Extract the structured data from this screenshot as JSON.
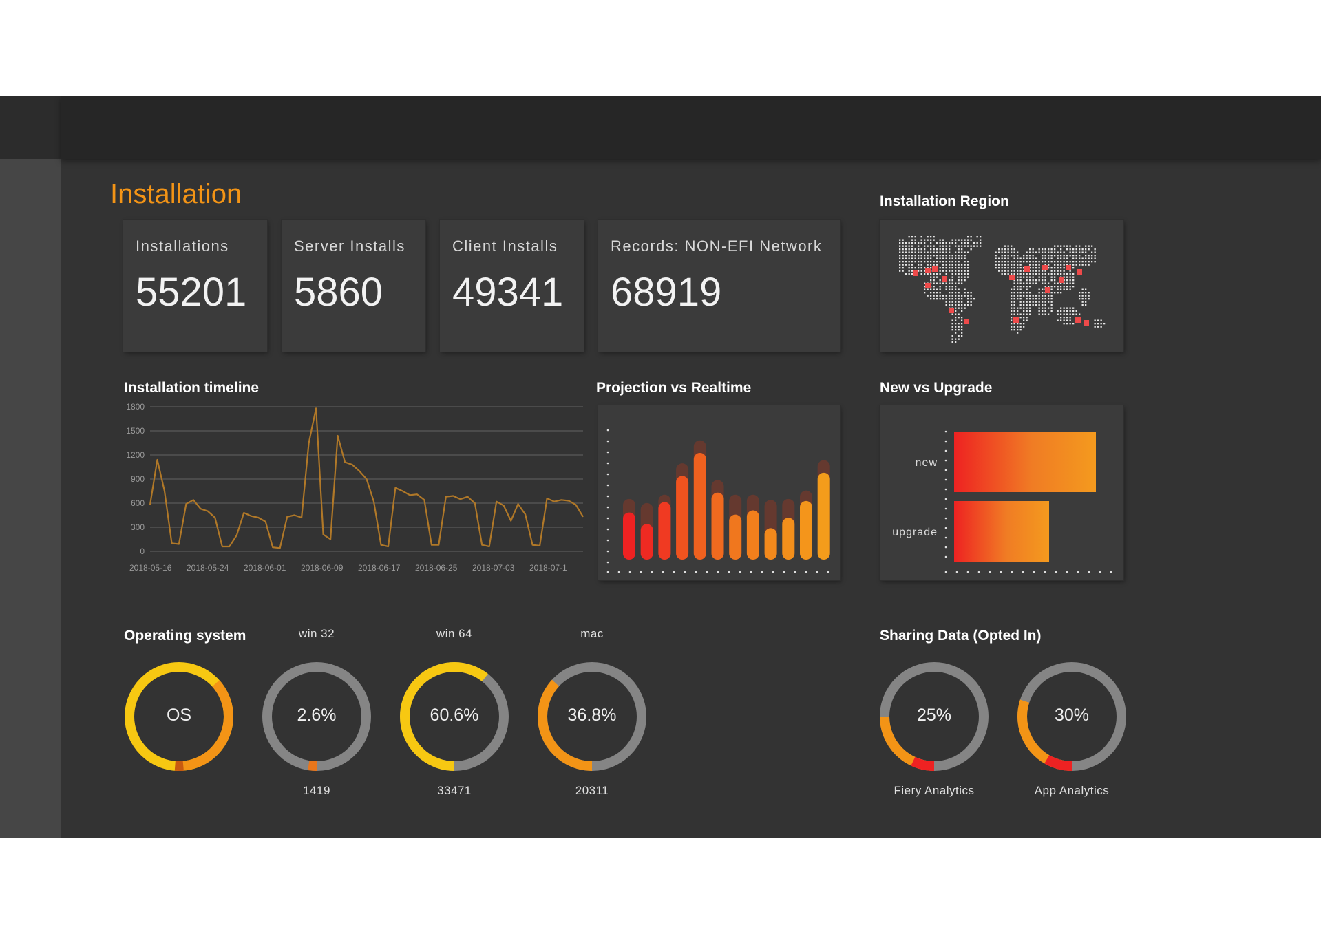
{
  "page": {
    "title": "Installation"
  },
  "kpis": [
    {
      "label": "Installations",
      "value": "55201"
    },
    {
      "label": "Server Installs",
      "value": "5860"
    },
    {
      "label": "Client Installs",
      "value": "49341"
    },
    {
      "label": "Records: NON-EFI Network",
      "value": "68919"
    }
  ],
  "sections": {
    "region": "Installation Region",
    "timeline": "Installation timeline",
    "projection": "Projection vs Realtime",
    "new_upgrade": "New vs Upgrade",
    "os": "Operating system",
    "sharing": "Sharing Data (Opted In)"
  },
  "colors": {
    "accent": "#f39416",
    "yellow": "#f7c812",
    "red": "#ee2222",
    "ring_bg": "#858585"
  },
  "os_rings": [
    {
      "title": "",
      "center": "OS",
      "count": "",
      "fraction": 1.0
    },
    {
      "title": "win 32",
      "center": "2.6%",
      "count": "1419",
      "fraction": 0.026
    },
    {
      "title": "win 64",
      "center": "60.6%",
      "count": "33471",
      "fraction": 0.606
    },
    {
      "title": "mac",
      "center": "36.8%",
      "count": "20311",
      "fraction": 0.368
    }
  ],
  "sharing_rings": [
    {
      "center": "25%",
      "label": "Fiery Analytics",
      "fraction": 0.25
    },
    {
      "center": "30%",
      "label": "App Analytics",
      "fraction": 0.3
    }
  ],
  "chart_data": [
    {
      "type": "line",
      "title": "Installation timeline",
      "x_tick_labels": [
        "2018-05-16",
        "2018-05-24",
        "2018-06-01",
        "2018-06-09",
        "2018-06-17",
        "2018-06-25",
        "2018-07-03",
        "2018-07-1"
      ],
      "y_tick_labels": [
        "0",
        "300",
        "600",
        "900",
        "1200",
        "1500",
        "1800"
      ],
      "ylim": [
        0,
        1800
      ],
      "grid": true,
      "series": [
        {
          "values": [
            580,
            1140,
            750,
            100,
            90,
            590,
            640,
            530,
            500,
            420,
            60,
            60,
            200,
            480,
            440,
            420,
            370,
            50,
            40,
            430,
            450,
            420,
            1350,
            1780,
            210,
            150,
            1440,
            1110,
            1080,
            1000,
            900,
            620,
            80,
            60,
            790,
            750,
            700,
            710,
            640,
            80,
            80,
            680,
            690,
            650,
            680,
            600,
            80,
            60,
            620,
            570,
            380,
            590,
            460,
            80,
            70,
            660,
            620,
            640,
            630,
            580,
            430
          ]
        }
      ]
    },
    {
      "type": "bar",
      "title": "Projection vs Realtime",
      "series": [
        {
          "values": [
            45,
            34,
            55,
            80,
            102,
            64,
            43,
            47,
            30,
            40,
            56,
            83
          ]
        },
        {
          "values": [
            58,
            54,
            62,
            92,
            114,
            76,
            62,
            62,
            57,
            58,
            66,
            95
          ]
        }
      ]
    },
    {
      "type": "bar",
      "title": "New vs Upgrade",
      "categories": [
        "new",
        "upgrade"
      ],
      "values": [
        100,
        67
      ]
    }
  ]
}
